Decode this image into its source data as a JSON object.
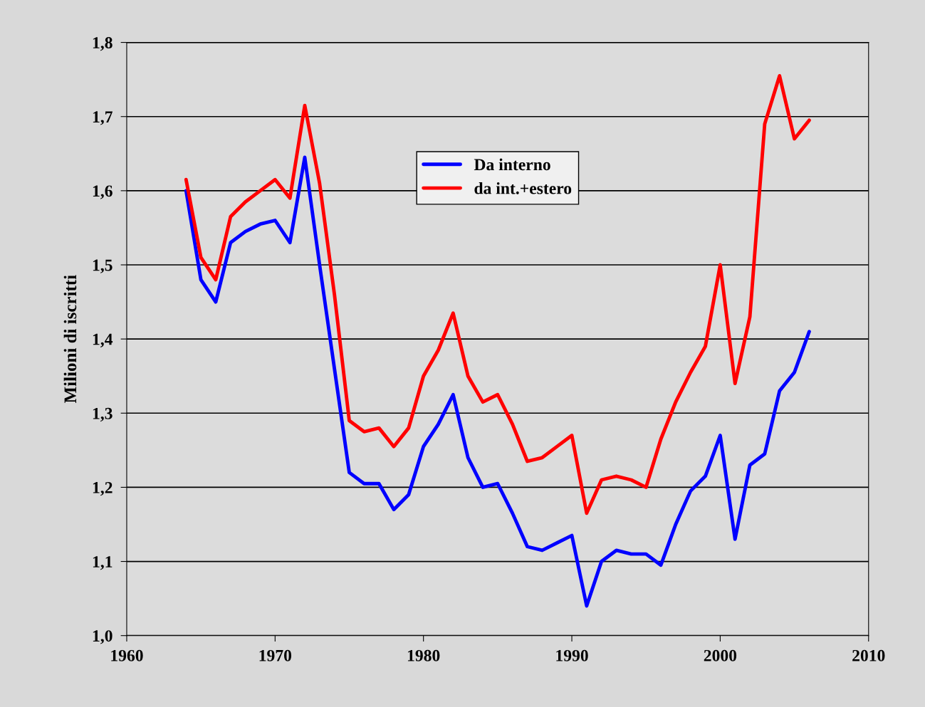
{
  "chart_data": {
    "type": "line",
    "ylabel": "Milioni di iscritti",
    "x": [
      1964,
      1965,
      1966,
      1967,
      1968,
      1969,
      1970,
      1971,
      1972,
      1973,
      1974,
      1975,
      1976,
      1977,
      1978,
      1979,
      1980,
      1981,
      1982,
      1983,
      1984,
      1985,
      1986,
      1987,
      1988,
      1989,
      1990,
      1991,
      1992,
      1993,
      1994,
      1995,
      1996,
      1997,
      1998,
      1999,
      2000,
      2001,
      2002,
      2003,
      2004,
      2005,
      2006
    ],
    "series": [
      {
        "name": "Da interno",
        "color": "#0000ff",
        "values": [
          1.6,
          1.48,
          1.45,
          1.53,
          1.545,
          1.555,
          1.56,
          1.53,
          1.645,
          1.5,
          1.36,
          1.22,
          1.205,
          1.205,
          1.17,
          1.19,
          1.255,
          1.285,
          1.325,
          1.24,
          1.2,
          1.205,
          1.165,
          1.12,
          1.115,
          1.125,
          1.135,
          1.04,
          1.1,
          1.115,
          1.11,
          1.11,
          1.095,
          1.15,
          1.195,
          1.215,
          1.27,
          1.13,
          1.23,
          1.245,
          1.33,
          1.355,
          1.41
        ]
      },
      {
        "name": "da int.+estero",
        "color": "#ff0000",
        "values": [
          1.615,
          1.51,
          1.48,
          1.565,
          1.585,
          1.6,
          1.615,
          1.59,
          1.715,
          1.61,
          1.46,
          1.29,
          1.275,
          1.28,
          1.255,
          1.28,
          1.35,
          1.385,
          1.435,
          1.35,
          1.315,
          1.325,
          1.285,
          1.235,
          1.24,
          1.255,
          1.27,
          1.165,
          1.21,
          1.215,
          1.21,
          1.2,
          1.265,
          1.315,
          1.355,
          1.39,
          1.5,
          1.34,
          1.43,
          1.69,
          1.755,
          1.67,
          1.695
        ]
      }
    ],
    "xlim": [
      1960,
      2010
    ],
    "xticks": [
      1960,
      1970,
      1980,
      1990,
      2000,
      2010
    ],
    "ylim": [
      1.0,
      1.8
    ],
    "yticks": [
      {
        "value": 1.0,
        "label": "1,0"
      },
      {
        "value": 1.1,
        "label": "1,1"
      },
      {
        "value": 1.2,
        "label": "1,2"
      },
      {
        "value": 1.3,
        "label": "1,3"
      },
      {
        "value": 1.4,
        "label": "1,4"
      },
      {
        "value": 1.5,
        "label": "1,5"
      },
      {
        "value": 1.6,
        "label": "1,6"
      },
      {
        "value": 1.7,
        "label": "1,7"
      },
      {
        "value": 1.8,
        "label": "1,8"
      }
    ],
    "grid": "y",
    "legend": "top",
    "marker": "none",
    "line_style": "solid"
  }
}
